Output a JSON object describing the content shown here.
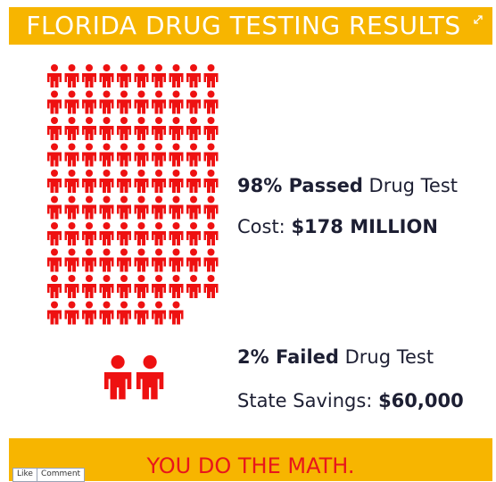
{
  "header": {
    "title": "FLORIDA DRUG TESTING RESULTS"
  },
  "icons": {
    "expand": "expand-icon",
    "person": "person-icon",
    "color": "#ee1111"
  },
  "infographic": {
    "passed_icon_count": 98,
    "failed_icon_count": 2,
    "passed": {
      "percent": "98% Passed",
      "label": " Drug Test",
      "cost_label": "Cost: ",
      "cost_value": "$178 MILLION"
    },
    "failed": {
      "percent": "2% Failed",
      "label": " Drug Test",
      "savings_label": "State Savings: ",
      "savings_value": "$60,000"
    }
  },
  "footer": {
    "tagline": "YOU DO THE MATH.",
    "like_label": "Like",
    "comment_label": "Comment"
  },
  "colors": {
    "banner": "#f7b500",
    "accent": "#e8161b",
    "text": "#1d1f33"
  }
}
